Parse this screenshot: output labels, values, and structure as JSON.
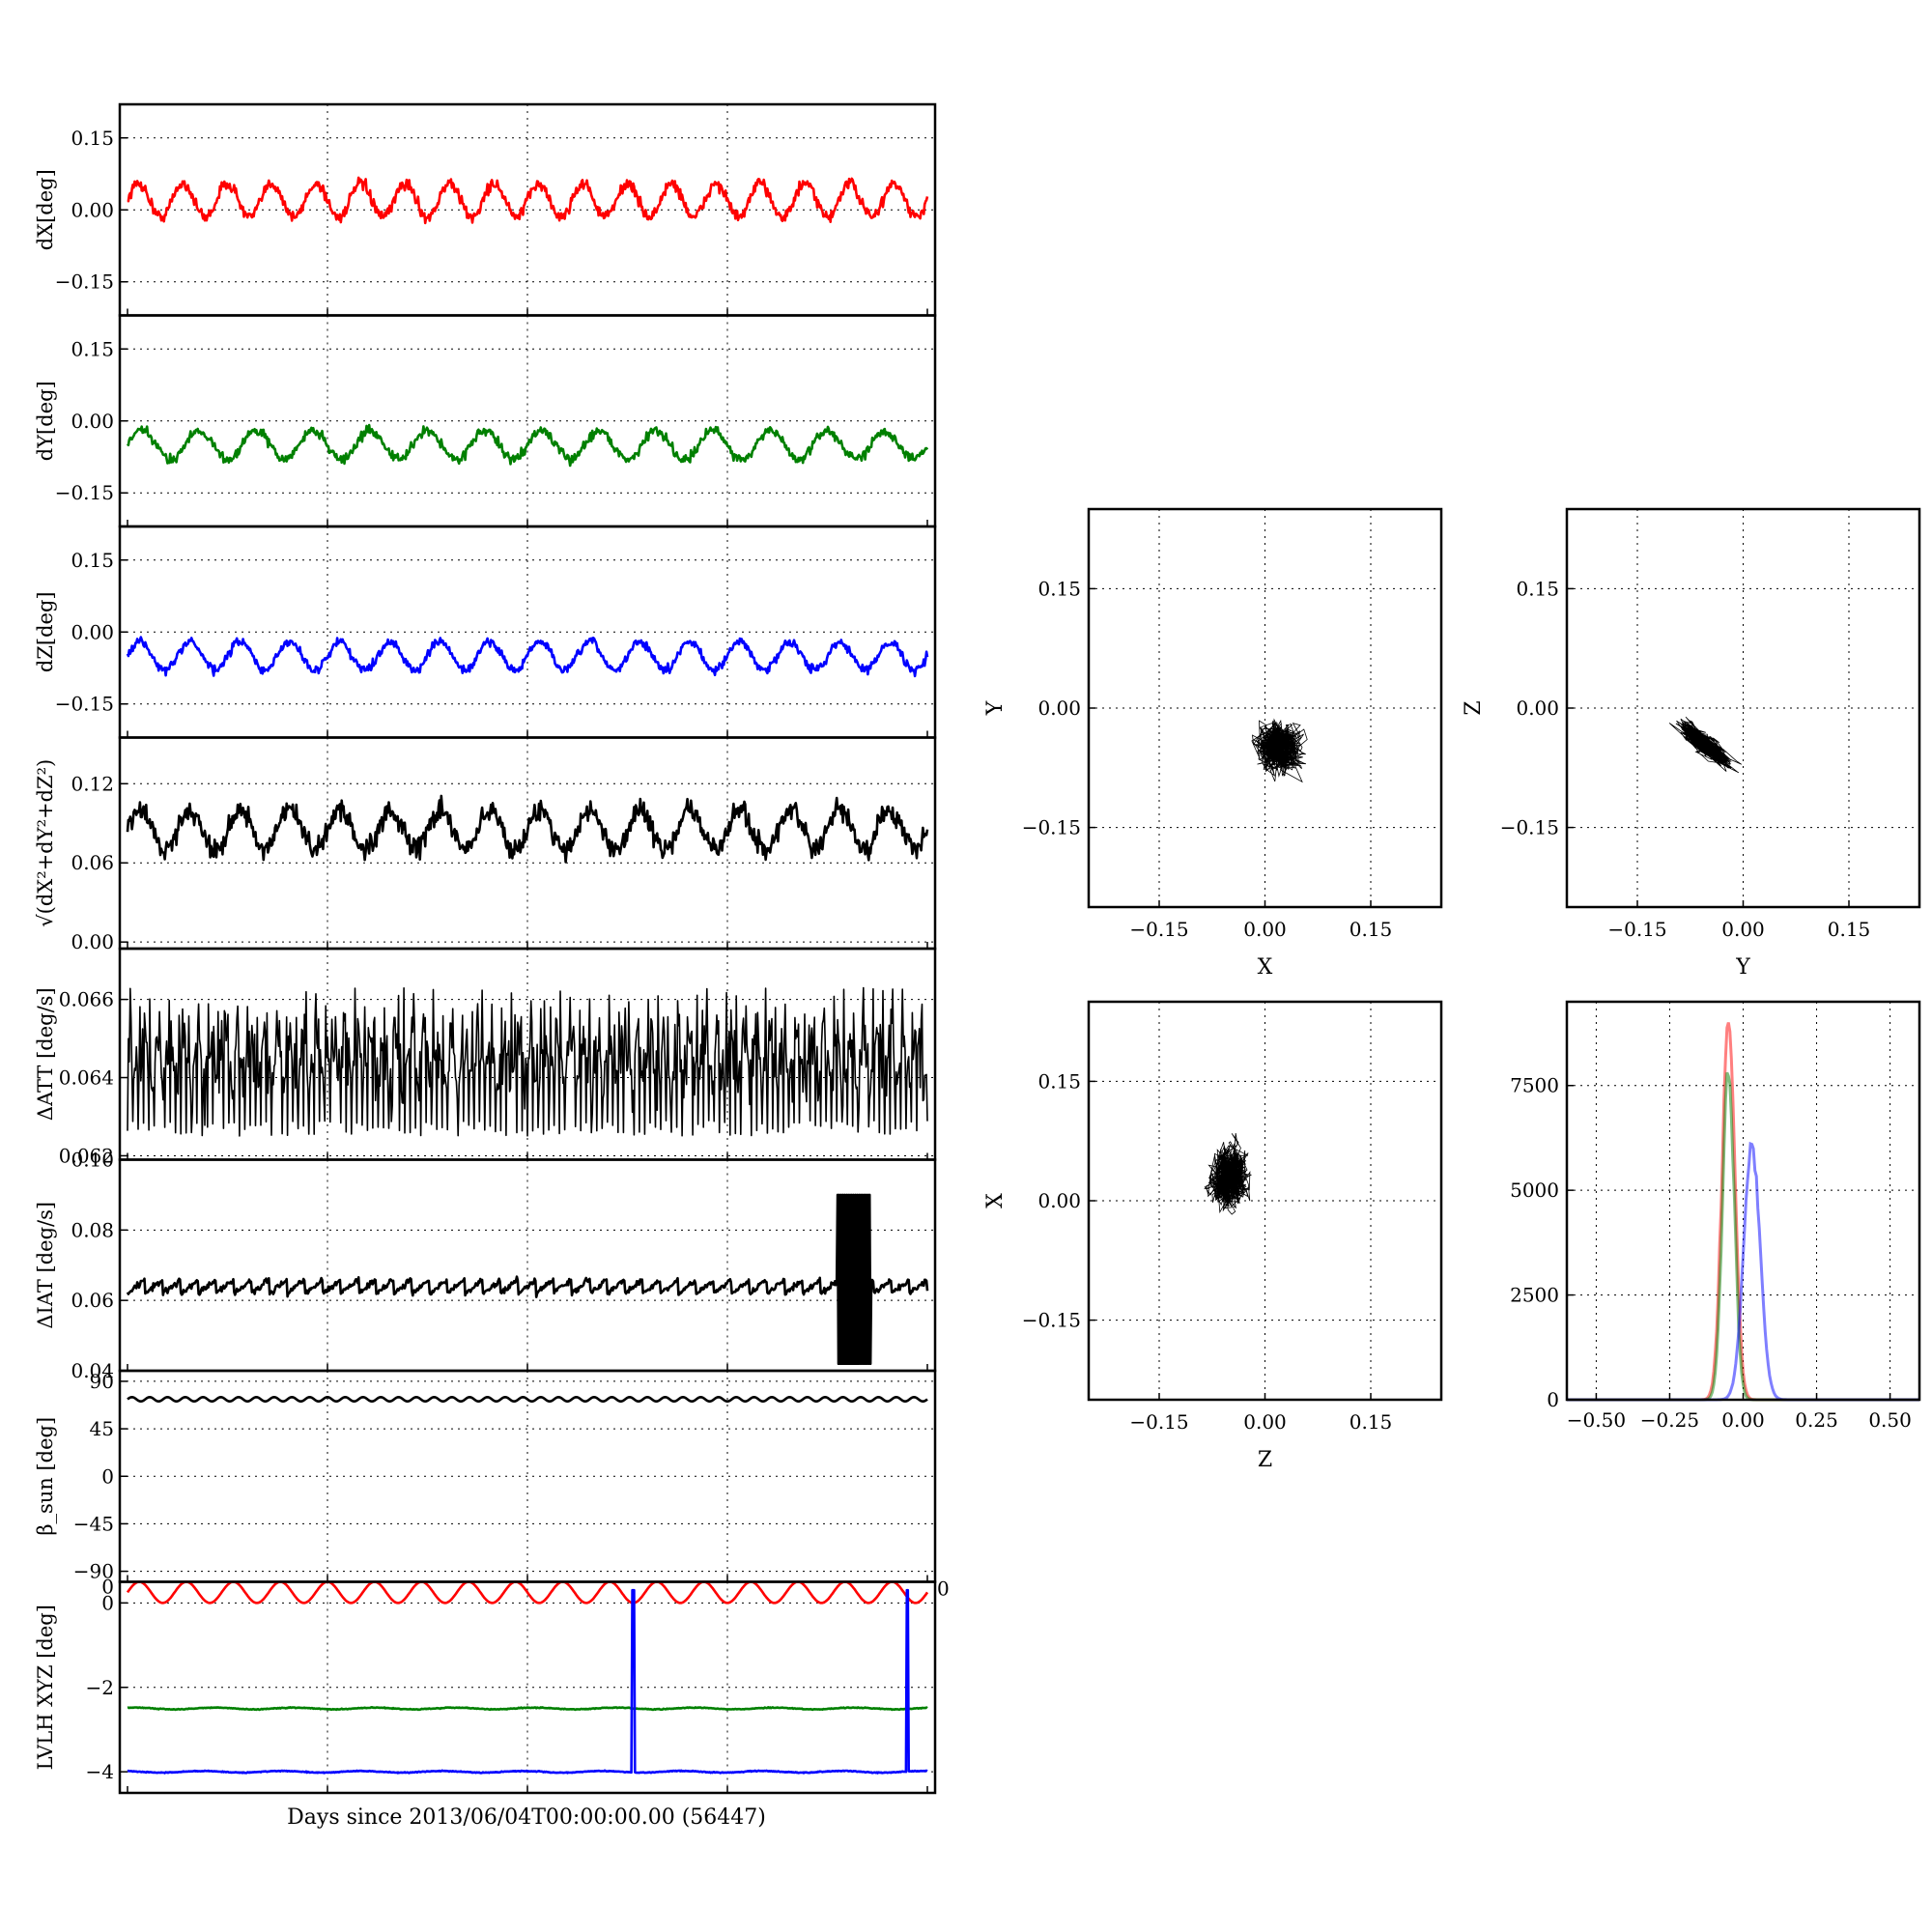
{
  "chart_data": [
    {
      "type": "line",
      "ylabel": "dX[deg]",
      "yticks": [
        "0.15",
        "0.00",
        "−0.15"
      ],
      "ylim": [
        -0.22,
        0.22
      ],
      "xlim": [
        0,
        1
      ],
      "grid": true,
      "series": [
        {
          "color": "#ff0000",
          "pattern": {
            "base": 0.02,
            "amp": 0.035,
            "cycles": 18,
            "noise": 0.012
          }
        }
      ]
    },
    {
      "type": "line",
      "ylabel": "dY[deg]",
      "yticks": [
        "0.15",
        "0.00",
        "−0.15"
      ],
      "ylim": [
        -0.22,
        0.22
      ],
      "xlim": [
        0,
        1
      ],
      "grid": true,
      "series": [
        {
          "color": "#008000",
          "pattern": {
            "base": -0.05,
            "amp": 0.03,
            "cycles": 14,
            "noise": 0.01
          }
        }
      ]
    },
    {
      "type": "line",
      "ylabel": "dZ[deg]",
      "yticks": [
        "0.15",
        "0.00",
        "−0.15"
      ],
      "ylim": [
        -0.22,
        0.22
      ],
      "xlim": [
        0,
        1
      ],
      "grid": true,
      "series": [
        {
          "color": "#0000ff",
          "pattern": {
            "base": -0.05,
            "amp": 0.03,
            "cycles": 16,
            "noise": 0.009
          }
        }
      ]
    },
    {
      "type": "line",
      "ylabel": "√(dX²+dY²+dZ²)",
      "yticks": [
        "0.12",
        "0.06",
        "0.00"
      ],
      "ylim": [
        -0.005,
        0.155
      ],
      "xlim": [
        0,
        1
      ],
      "grid": true,
      "series": [
        {
          "color": "#000000",
          "pattern": {
            "base": 0.085,
            "amp": 0.015,
            "cycles": 16,
            "noise": 0.008
          }
        }
      ]
    },
    {
      "type": "line",
      "ylabel": "ΔATT [deg/s]",
      "yticks": [
        "0.066",
        "0.064",
        "0.062"
      ],
      "ylim": [
        0.0619,
        0.0673
      ],
      "xlim": [
        0,
        1
      ],
      "grid": true,
      "series": [
        {
          "color": "#000000",
          "pattern": {
            "base": 0.0645,
            "amp": 0.0006,
            "cycles": 60,
            "noise": 0.0008,
            "spiky": true
          }
        }
      ]
    },
    {
      "type": "line",
      "ylabel": "ΔIAT [deg/s]",
      "yticks": [
        "0.10",
        "0.08",
        "0.06",
        "0.04"
      ],
      "ylim": [
        0.04,
        0.1
      ],
      "xlim": [
        0,
        1
      ],
      "grid": true,
      "series": [
        {
          "color": "#000000",
          "pattern": {
            "base": 0.064,
            "amp": 0.002,
            "cycles": 45,
            "noise": 0.0008,
            "sawtooth": true,
            "burst": [
              0.887,
              0.93
            ]
          }
        }
      ]
    },
    {
      "type": "line",
      "ylabel": "β_sun [deg]",
      "yticks": [
        "90",
        "45",
        "0",
        "−45",
        "−90"
      ],
      "ylim": [
        -100,
        100
      ],
      "xlim": [
        0,
        1
      ],
      "grid": true,
      "series": [
        {
          "color": "#000000",
          "pattern": {
            "base": 73,
            "amp": 2,
            "cycles": 45,
            "noise": 0
          }
        }
      ]
    },
    {
      "type": "line",
      "ylabel": "LVLH XYZ [deg]",
      "yticks": [
        "0",
        "−2",
        "−4"
      ],
      "yticks_extra": [
        "0",
        "0"
      ],
      "ylim": [
        -4.5,
        0.5
      ],
      "xlim": [
        0,
        1
      ],
      "grid": true,
      "xlabel": "Days since 2013/06/04T00:00:00.00 (56447)",
      "series": [
        {
          "color": "#ff0000",
          "pattern": {
            "base": 0.25,
            "amp": 0.25,
            "cycles": 17,
            "noise": 0
          }
        },
        {
          "color": "#008000",
          "pattern": {
            "base": -2.5,
            "amp": 0.02,
            "cycles": 10,
            "noise": 0.01
          }
        },
        {
          "color": "#0000ff",
          "pattern": {
            "base": -4.0,
            "amp": 0.02,
            "cycles": 10,
            "noise": 0.01,
            "spikes": [
              0.632,
              0.975
            ]
          }
        }
      ]
    },
    {
      "type": "scatter",
      "xlabel": "X",
      "ylabel": "Y",
      "xticks": [
        "−0.15",
        "0.00",
        "0.15"
      ],
      "yticks": [
        "0.15",
        "0.00",
        "−0.15"
      ],
      "xlim": [
        -0.25,
        0.25
      ],
      "ylim": [
        -0.25,
        0.25
      ],
      "grid": true,
      "cloud": {
        "cx": 0.02,
        "cy": -0.05,
        "rx": 0.045,
        "ry": 0.045,
        "tilt": 0,
        "n": 900
      }
    },
    {
      "type": "scatter",
      "xlabel": "Y",
      "ylabel": "Z",
      "xticks": [
        "−0.15",
        "0.00",
        "0.15"
      ],
      "yticks": [
        "0.15",
        "0.00",
        "−0.15"
      ],
      "xlim": [
        -0.25,
        0.25
      ],
      "ylim": [
        -0.25,
        0.25
      ],
      "grid": true,
      "cloud": {
        "cx": -0.055,
        "cy": -0.045,
        "rx": 0.06,
        "ry": 0.015,
        "tilt": -35,
        "n": 900
      }
    },
    {
      "type": "scatter",
      "xlabel": "Z",
      "ylabel": "X",
      "xticks": [
        "−0.15",
        "0.00",
        "0.15"
      ],
      "yticks": [
        "0.15",
        "0.00",
        "−0.15"
      ],
      "xlim": [
        -0.25,
        0.25
      ],
      "ylim": [
        -0.25,
        0.25
      ],
      "grid": true,
      "cloud": {
        "cx": -0.05,
        "cy": 0.03,
        "rx": 0.04,
        "ry": 0.055,
        "tilt": 0,
        "n": 900
      }
    },
    {
      "type": "histogram",
      "xticks": [
        "−0.50",
        "−0.25",
        "0.00",
        "0.25",
        "0.50"
      ],
      "xtick_values": [
        -0.5,
        -0.25,
        0,
        0.25,
        0.5
      ],
      "yticks": [
        "7500",
        "5000",
        "2500",
        "0"
      ],
      "ytick_values": [
        7500,
        5000,
        2500,
        0
      ],
      "xlim": [
        -0.6,
        0.6
      ],
      "ylim": [
        0,
        9500
      ],
      "grid": true,
      "series": [
        {
          "color": "#ff0000",
          "center": -0.05,
          "width": 0.022,
          "peak": 9000
        },
        {
          "color": "#008000",
          "center": -0.05,
          "width": 0.02,
          "peak": 8000
        },
        {
          "color": "#0000ff",
          "center": 0.03,
          "width": 0.028,
          "peak": 6000
        }
      ]
    }
  ]
}
